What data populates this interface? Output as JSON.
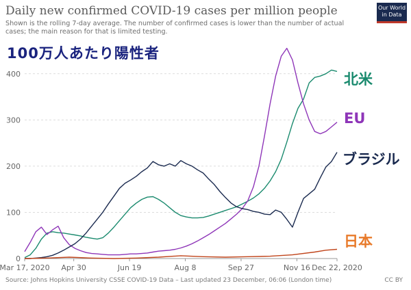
{
  "title": "Daily new confirmed COVID-19 cases per million people",
  "subtitle": "Shown is the rolling 7-day average. The number of confirmed cases is lower than the number of actual cases; the main reason for that is limited testing.",
  "logo": {
    "line1": "Our World",
    "line2": "in Data"
  },
  "annotation_title": "100万人あたり陽性者",
  "source": "Source: Johns Hopkins University CSSE COVID-19 Data – Last updated 23 December, 06:06 (London time)",
  "license": "CC BY",
  "chart_data": {
    "type": "line",
    "title": "Daily new confirmed COVID-19 cases per million people",
    "xlabel": "",
    "ylabel": "",
    "ylim": [
      0,
      450
    ],
    "yticks": [
      0,
      100,
      200,
      300,
      400
    ],
    "x_tick_labels": [
      "Mar 17, 2020",
      "Apr 30",
      "Jun 19",
      "Aug 8",
      "Sep 27",
      "Nov 16",
      "Dec 22, 2020"
    ],
    "x_tick_days": [
      0,
      44,
      94,
      144,
      194,
      244,
      280
    ],
    "x_range_days": [
      0,
      280
    ],
    "series": [
      {
        "name": "北米",
        "color": "#1a8a6e",
        "x": [
          0,
          5,
          10,
          15,
          20,
          25,
          30,
          35,
          40,
          45,
          50,
          55,
          60,
          65,
          70,
          75,
          80,
          85,
          90,
          95,
          100,
          105,
          110,
          115,
          120,
          125,
          130,
          135,
          140,
          145,
          150,
          155,
          160,
          165,
          170,
          175,
          180,
          185,
          190,
          195,
          200,
          205,
          210,
          215,
          220,
          225,
          230,
          235,
          240,
          245,
          250,
          255,
          260,
          265,
          270,
          275,
          280
        ],
        "values": [
          2,
          8,
          22,
          42,
          55,
          58,
          56,
          55,
          53,
          51,
          49,
          46,
          44,
          42,
          45,
          55,
          68,
          82,
          96,
          110,
          120,
          128,
          133,
          134,
          128,
          120,
          110,
          100,
          93,
          90,
          88,
          88,
          89,
          92,
          96,
          100,
          104,
          108,
          112,
          118,
          124,
          131,
          140,
          152,
          168,
          188,
          215,
          252,
          292,
          325,
          345,
          380,
          392,
          395,
          400,
          408,
          405
        ]
      },
      {
        "name": "EU",
        "color": "#8e35b8",
        "x": [
          0,
          5,
          10,
          15,
          20,
          25,
          30,
          35,
          40,
          45,
          50,
          55,
          60,
          65,
          70,
          75,
          80,
          85,
          90,
          95,
          100,
          105,
          110,
          115,
          120,
          125,
          130,
          135,
          140,
          145,
          150,
          155,
          160,
          165,
          170,
          175,
          180,
          185,
          190,
          195,
          200,
          205,
          210,
          215,
          220,
          225,
          230,
          235,
          240,
          245,
          250,
          255,
          260,
          265,
          270,
          275,
          280
        ],
        "values": [
          15,
          35,
          58,
          68,
          52,
          62,
          70,
          45,
          30,
          22,
          17,
          13,
          11,
          10,
          9,
          8,
          8,
          8,
          9,
          10,
          10,
          11,
          12,
          14,
          16,
          17,
          18,
          20,
          23,
          27,
          32,
          38,
          45,
          52,
          60,
          68,
          76,
          86,
          96,
          108,
          125,
          155,
          200,
          265,
          335,
          395,
          438,
          455,
          430,
          380,
          335,
          300,
          275,
          270,
          275,
          285,
          295
        ]
      },
      {
        "name": "ブラジル",
        "color": "#1a2a4f",
        "x": [
          0,
          5,
          10,
          15,
          20,
          25,
          30,
          35,
          40,
          45,
          50,
          55,
          60,
          65,
          70,
          75,
          80,
          85,
          90,
          95,
          100,
          105,
          110,
          115,
          120,
          125,
          130,
          135,
          140,
          145,
          150,
          155,
          160,
          165,
          170,
          175,
          180,
          185,
          190,
          195,
          200,
          205,
          210,
          215,
          220,
          225,
          230,
          235,
          240,
          245,
          250,
          255,
          260,
          265,
          270,
          275,
          280
        ],
        "values": [
          0,
          0,
          1,
          2,
          4,
          7,
          12,
          18,
          25,
          32,
          42,
          55,
          70,
          85,
          100,
          118,
          135,
          152,
          163,
          170,
          178,
          188,
          196,
          210,
          203,
          200,
          205,
          200,
          212,
          205,
          200,
          192,
          185,
          172,
          160,
          145,
          132,
          120,
          112,
          108,
          106,
          102,
          100,
          96,
          95,
          105,
          100,
          85,
          68,
          100,
          130,
          140,
          150,
          175,
          198,
          210,
          230
        ]
      },
      {
        "name": "日本",
        "color": "#c0441a",
        "x": [
          0,
          20,
          40,
          60,
          80,
          100,
          120,
          140,
          160,
          180,
          200,
          220,
          240,
          260,
          270,
          280
        ],
        "values": [
          0,
          1,
          3,
          1,
          0,
          1,
          3,
          6,
          4,
          3,
          4,
          5,
          8,
          14,
          18,
          20
        ]
      }
    ]
  },
  "labels": {
    "hokubei": "北米",
    "eu": "EU",
    "brazil": "ブラジル",
    "japan": "日本"
  }
}
